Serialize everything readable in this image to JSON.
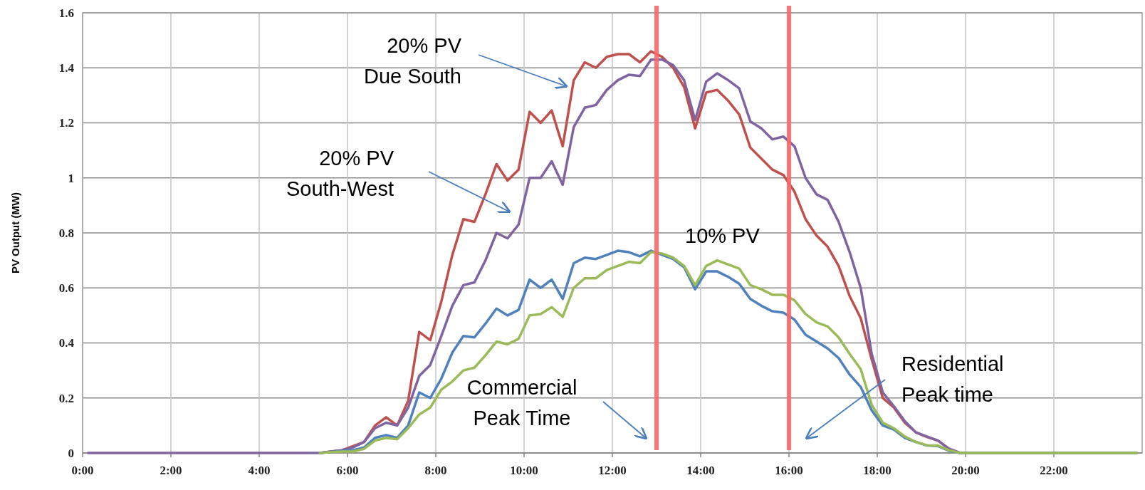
{
  "chart_data": {
    "type": "line",
    "ylabel": "PV Output (MW)",
    "x": [
      0.125,
      5.125,
      5.375,
      5.625,
      5.875,
      6.125,
      6.375,
      6.625,
      6.875,
      7.125,
      7.375,
      7.625,
      7.875,
      8.125,
      8.375,
      8.625,
      8.875,
      9.125,
      9.375,
      9.625,
      9.875,
      10.125,
      10.375,
      10.625,
      10.875,
      11.125,
      11.375,
      11.625,
      11.875,
      12.125,
      12.375,
      12.625,
      12.875,
      13.125,
      13.375,
      13.625,
      13.875,
      14.125,
      14.375,
      14.625,
      14.875,
      15.125,
      15.375,
      15.625,
      15.875,
      16.125,
      16.375,
      16.625,
      16.875,
      17.125,
      17.375,
      17.625,
      17.875,
      18.125,
      18.375,
      18.625,
      18.875,
      19.125,
      19.375,
      19.625,
      19.875,
      23.875
    ],
    "series": [
      {
        "color": "#c0504d",
        "values": [
          null,
          null,
          0,
          0.005,
          0.01,
          0.025,
          0.04,
          0.1,
          0.13,
          0.1,
          0.19,
          0.44,
          0.41,
          0.55,
          0.72,
          0.85,
          0.84,
          0.94,
          1.05,
          0.99,
          1.03,
          1.24,
          1.2,
          1.245,
          1.115,
          1.355,
          1.42,
          1.4,
          1.44,
          1.45,
          1.45,
          1.42,
          1.46,
          1.44,
          1.4,
          1.33,
          1.18,
          1.31,
          1.32,
          1.28,
          1.23,
          1.11,
          1.07,
          1.03,
          1.01,
          0.95,
          0.85,
          0.79,
          0.75,
          0.68,
          0.57,
          0.49,
          0.34,
          0.2,
          0.165,
          0.11,
          0.075,
          0.058,
          0.045,
          0.015,
          0,
          0
        ]
      },
      {
        "color": "#8064a2",
        "values": [
          0,
          0,
          0,
          0.005,
          0.01,
          0.02,
          0.04,
          0.09,
          0.11,
          0.1,
          0.165,
          0.28,
          0.32,
          0.425,
          0.535,
          0.61,
          0.62,
          0.7,
          0.8,
          0.78,
          0.83,
          1.0,
          1.0,
          1.06,
          0.975,
          1.185,
          1.255,
          1.265,
          1.32,
          1.355,
          1.375,
          1.37,
          1.43,
          1.43,
          1.41,
          1.355,
          1.21,
          1.35,
          1.38,
          1.355,
          1.325,
          1.205,
          1.18,
          1.14,
          1.15,
          1.115,
          1.0,
          0.94,
          0.92,
          0.84,
          0.73,
          0.6,
          0.36,
          0.22,
          0.17,
          0.115,
          0.075,
          0.06,
          0.045,
          0.015,
          0,
          0
        ]
      },
      {
        "color": "#4f81bd",
        "values": [
          null,
          null,
          0,
          0.004,
          0.008,
          0.01,
          0.02,
          0.055,
          0.065,
          0.055,
          0.1,
          0.22,
          0.2,
          0.27,
          0.365,
          0.425,
          0.42,
          0.47,
          0.525,
          0.5,
          0.52,
          0.63,
          0.6,
          0.63,
          0.56,
          0.69,
          0.71,
          0.705,
          0.72,
          0.735,
          0.73,
          0.715,
          0.735,
          0.72,
          0.705,
          0.675,
          0.595,
          0.66,
          0.66,
          0.64,
          0.615,
          0.56,
          0.535,
          0.515,
          0.51,
          0.485,
          0.43,
          0.405,
          0.38,
          0.345,
          0.285,
          0.24,
          0.155,
          0.1,
          0.085,
          0.055,
          0.04,
          0.027,
          0.025,
          0.008,
          0,
          0
        ]
      },
      {
        "color": "#9bbb59",
        "values": [
          null,
          null,
          0,
          0.003,
          0.005,
          0.005,
          0.015,
          0.045,
          0.055,
          0.05,
          0.09,
          0.14,
          0.165,
          0.23,
          0.26,
          0.3,
          0.31,
          0.355,
          0.405,
          0.395,
          0.415,
          0.5,
          0.505,
          0.53,
          0.495,
          0.6,
          0.635,
          0.635,
          0.665,
          0.68,
          0.695,
          0.69,
          0.73,
          0.725,
          0.71,
          0.68,
          0.61,
          0.68,
          0.7,
          0.685,
          0.67,
          0.61,
          0.595,
          0.575,
          0.575,
          0.555,
          0.505,
          0.475,
          0.46,
          0.42,
          0.36,
          0.305,
          0.175,
          0.11,
          0.09,
          0.06,
          0.04,
          0.028,
          0.027,
          0.01,
          0,
          0
        ]
      }
    ],
    "xlim": [
      0,
      24
    ],
    "xticks": [
      {
        "value": 0,
        "label": "0:00"
      },
      {
        "value": 2,
        "label": "2:00"
      },
      {
        "value": 4,
        "label": "4:00"
      },
      {
        "value": 6,
        "label": "6:00"
      },
      {
        "value": 8,
        "label": "8:00"
      },
      {
        "value": 10,
        "label": "10:00"
      },
      {
        "value": 12,
        "label": "12:00"
      },
      {
        "value": 14,
        "label": "14:00"
      },
      {
        "value": 16,
        "label": "16:00"
      },
      {
        "value": 18,
        "label": "18:00"
      },
      {
        "value": 20,
        "label": "20:00"
      },
      {
        "value": 22,
        "label": "22:00"
      }
    ],
    "ylim": [
      0,
      1.6
    ],
    "yticks": [
      0,
      0.2,
      0.4,
      0.6,
      0.8,
      1,
      1.2,
      1.4,
      1.6
    ],
    "grid": true,
    "marker": "none",
    "line_style": "solid",
    "ref_lines": [
      {
        "axis": "x",
        "value": 13,
        "color": "#ff6666"
      },
      {
        "axis": "x",
        "value": 16,
        "color": "#ff6666"
      }
    ],
    "annotations": [
      "20% PV\nDue South",
      "20% PV\nSouth-West",
      "10% PV",
      "Commercial\nPeak Time",
      "Residential\nPeak time"
    ]
  }
}
